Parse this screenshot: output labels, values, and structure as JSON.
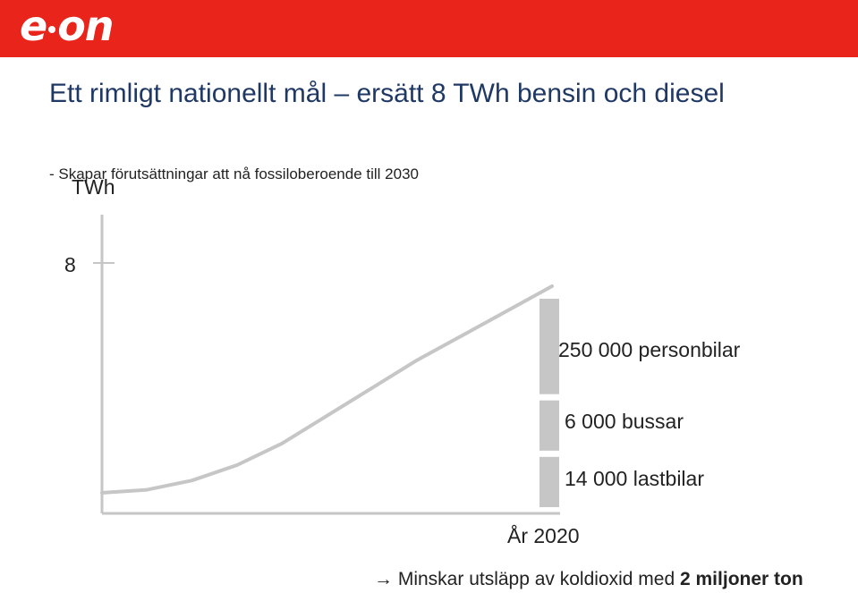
{
  "header": {
    "logo": "e·on",
    "bg": "#e8241b"
  },
  "title": "Ett rimligt nationellt mål – ersätt 8 TWh bensin och diesel",
  "subtitle": "- Skapar förutsättningar att nå fossiloberoende till 2030",
  "footer": {
    "arrow": "→",
    "text": "Minskar utsläpp av koldioxid med ",
    "bold": "2 miljoner ton"
  },
  "chart_data": {
    "type": "line",
    "ylabel": "TWh",
    "yticks": [
      "8"
    ],
    "ylim": [
      0,
      10
    ],
    "xlabel": "År 2020",
    "series": [
      {
        "x": [
          0,
          0.1,
          0.2,
          0.3,
          0.4,
          0.5,
          0.6,
          0.7,
          0.8,
          0.9,
          1.0
        ],
        "y": [
          0.0,
          0.1,
          0.4,
          0.9,
          1.6,
          2.5,
          3.4,
          4.3,
          5.1,
          5.9,
          6.7
        ]
      }
    ],
    "stacked_bar": [
      {
        "label": "250 000 personbilar",
        "value": 3.8
      },
      {
        "label": "6 000 bussar",
        "value": 2.0
      },
      {
        "label": "14 000 lastbilar",
        "value": 2.0
      }
    ],
    "colors": {
      "line": "#c6c6c6",
      "bars": "#c6c6c6",
      "axis": "#c6c6c6"
    }
  }
}
